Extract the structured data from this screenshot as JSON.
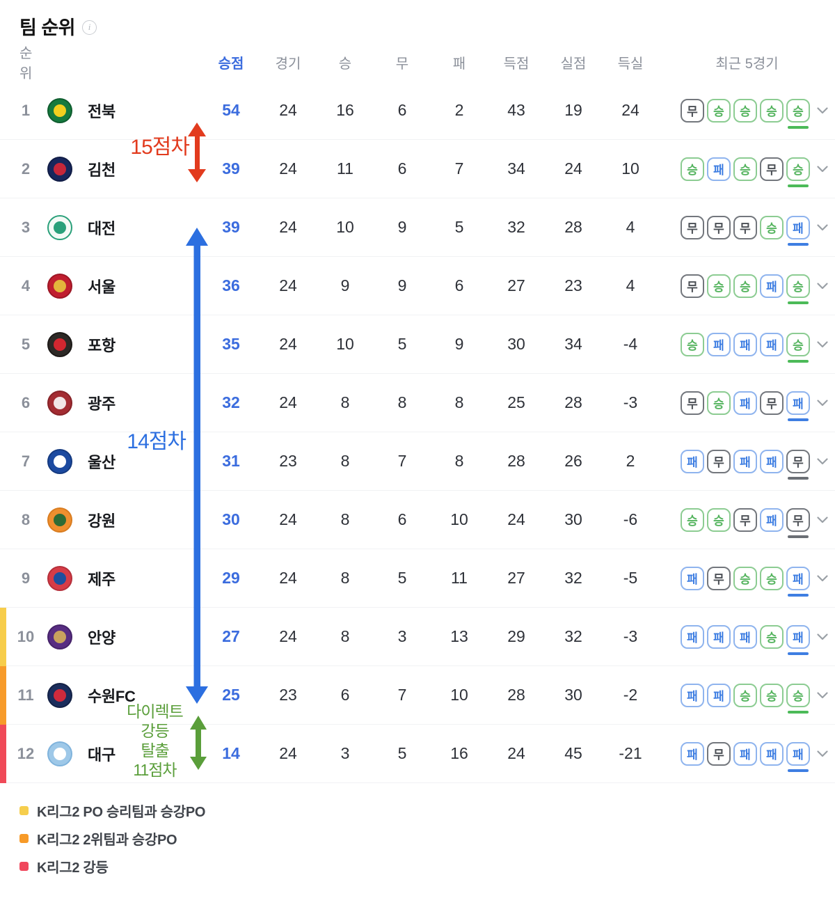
{
  "page": {
    "title": "팀 순위",
    "info_icon": "i"
  },
  "colors": {
    "points_accent": "#3b6cde",
    "win_green": "#53b35d",
    "loss_blue": "#3e7ee2",
    "draw_gray": "#4b4f55",
    "annotation_red": "#e23b1e",
    "annotation_blue": "#2c6fe0",
    "annotation_green": "#5a9e3a"
  },
  "table": {
    "headers": {
      "rank": "순위",
      "points": "승점",
      "games": "경기",
      "win": "승",
      "draw": "무",
      "loss": "패",
      "goals_for": "득점",
      "goals_against": "실점",
      "goal_diff": "득실",
      "recent": "최근 5경기"
    },
    "rows": [
      {
        "rank": "1",
        "team": "전북",
        "points": "54",
        "games": "24",
        "win": "16",
        "draw": "6",
        "loss": "2",
        "gf": "43",
        "ga": "19",
        "gd": "24",
        "recent": [
          "무",
          "승",
          "승",
          "승",
          "승"
        ],
        "edge_bar": null,
        "logo": {
          "bg": "#157a3e",
          "accent": "#f2cf1f",
          "ring": "#0e5c2e"
        }
      },
      {
        "rank": "2",
        "team": "김천",
        "points": "39",
        "games": "24",
        "win": "11",
        "draw": "6",
        "loss": "7",
        "gf": "34",
        "ga": "24",
        "gd": "10",
        "recent": [
          "승",
          "패",
          "승",
          "무",
          "승"
        ],
        "edge_bar": null,
        "logo": {
          "bg": "#17275c",
          "accent": "#c5273a",
          "ring": "#101c45"
        }
      },
      {
        "rank": "3",
        "team": "대전",
        "points": "39",
        "games": "24",
        "win": "10",
        "draw": "9",
        "loss": "5",
        "gf": "32",
        "ga": "28",
        "gd": "4",
        "recent": [
          "무",
          "무",
          "무",
          "승",
          "패"
        ],
        "edge_bar": null,
        "logo": {
          "bg": "#f4faf6",
          "accent": "#2aa07a",
          "ring": "#2aa07a"
        }
      },
      {
        "rank": "4",
        "team": "서울",
        "points": "36",
        "games": "24",
        "win": "9",
        "draw": "9",
        "loss": "6",
        "gf": "27",
        "ga": "23",
        "gd": "4",
        "recent": [
          "무",
          "승",
          "승",
          "패",
          "승"
        ],
        "edge_bar": null,
        "logo": {
          "bg": "#c01e2f",
          "accent": "#e3b53c",
          "ring": "#9c1625"
        }
      },
      {
        "rank": "5",
        "team": "포항",
        "points": "35",
        "games": "24",
        "win": "10",
        "draw": "5",
        "loss": "9",
        "gf": "30",
        "ga": "34",
        "gd": "-4",
        "recent": [
          "승",
          "패",
          "패",
          "패",
          "승"
        ],
        "edge_bar": null,
        "logo": {
          "bg": "#2d2926",
          "accent": "#d22730",
          "ring": "#1c1917"
        }
      },
      {
        "rank": "6",
        "team": "광주",
        "points": "32",
        "games": "24",
        "win": "8",
        "draw": "8",
        "loss": "8",
        "gf": "25",
        "ga": "28",
        "gd": "-3",
        "recent": [
          "무",
          "승",
          "패",
          "무",
          "패"
        ],
        "edge_bar": null,
        "logo": {
          "bg": "#a32c32",
          "accent": "#f2e6e6",
          "ring": "#872227"
        }
      },
      {
        "rank": "7",
        "team": "울산",
        "points": "31",
        "games": "23",
        "win": "8",
        "draw": "7",
        "loss": "8",
        "gf": "28",
        "ga": "26",
        "gd": "2",
        "recent": [
          "패",
          "무",
          "패",
          "패",
          "무"
        ],
        "edge_bar": null,
        "logo": {
          "bg": "#1c4aa0",
          "accent": "#ffffff",
          "ring": "#143a80"
        }
      },
      {
        "rank": "8",
        "team": "강원",
        "points": "30",
        "games": "24",
        "win": "8",
        "draw": "6",
        "loss": "10",
        "gf": "24",
        "ga": "30",
        "gd": "-6",
        "recent": [
          "승",
          "승",
          "무",
          "패",
          "무"
        ],
        "edge_bar": null,
        "logo": {
          "bg": "#ef8f2f",
          "accent": "#2e6b35",
          "ring": "#d97c1f"
        }
      },
      {
        "rank": "9",
        "team": "제주",
        "points": "29",
        "games": "24",
        "win": "8",
        "draw": "5",
        "loss": "11",
        "gf": "27",
        "ga": "32",
        "gd": "-5",
        "recent": [
          "패",
          "무",
          "승",
          "승",
          "패"
        ],
        "edge_bar": null,
        "logo": {
          "bg": "#d63c47",
          "accent": "#1d4f9e",
          "ring": "#b52f3a"
        }
      },
      {
        "rank": "10",
        "team": "안양",
        "points": "27",
        "games": "24",
        "win": "8",
        "draw": "3",
        "loss": "13",
        "gf": "29",
        "ga": "32",
        "gd": "-3",
        "recent": [
          "패",
          "패",
          "패",
          "승",
          "패"
        ],
        "edge_bar": "#f7cd4b",
        "logo": {
          "bg": "#582d82",
          "accent": "#c9a25e",
          "ring": "#452269"
        }
      },
      {
        "rank": "11",
        "team": "수원FC",
        "points": "25",
        "games": "23",
        "win": "6",
        "draw": "7",
        "loss": "10",
        "gf": "28",
        "ga": "30",
        "gd": "-2",
        "recent": [
          "패",
          "패",
          "승",
          "승",
          "승"
        ],
        "edge_bar": "#f79b2a",
        "logo": {
          "bg": "#1b2d5c",
          "accent": "#cf2a3c",
          "ring": "#132145"
        }
      },
      {
        "rank": "12",
        "team": "대구",
        "points": "14",
        "games": "24",
        "win": "3",
        "draw": "5",
        "loss": "16",
        "gf": "24",
        "ga": "45",
        "gd": "-21",
        "recent": [
          "패",
          "무",
          "패",
          "패",
          "패"
        ],
        "edge_bar": "#f04a58",
        "logo": {
          "bg": "#9ec8e8",
          "accent": "#ffffff",
          "ring": "#7fb3dc"
        }
      }
    ]
  },
  "annotations": {
    "gap_top": {
      "label": "15점차",
      "color": "#e23b1e"
    },
    "gap_middle": {
      "label": "14점차",
      "color": "#2c6fe0"
    },
    "gap_bottom": {
      "lines": [
        "다이렉트",
        "강등",
        "탈출",
        "11점차"
      ],
      "color": "#5a9e3a"
    }
  },
  "legend": {
    "items": [
      {
        "label": "K리그2 PO 승리팀과 승강PO",
        "color": "#f6ce4d"
      },
      {
        "label": "K리그2 2위팀과 승강PO",
        "color": "#f79a28"
      },
      {
        "label": "K리그2 강등",
        "color": "#f0475c"
      }
    ]
  }
}
